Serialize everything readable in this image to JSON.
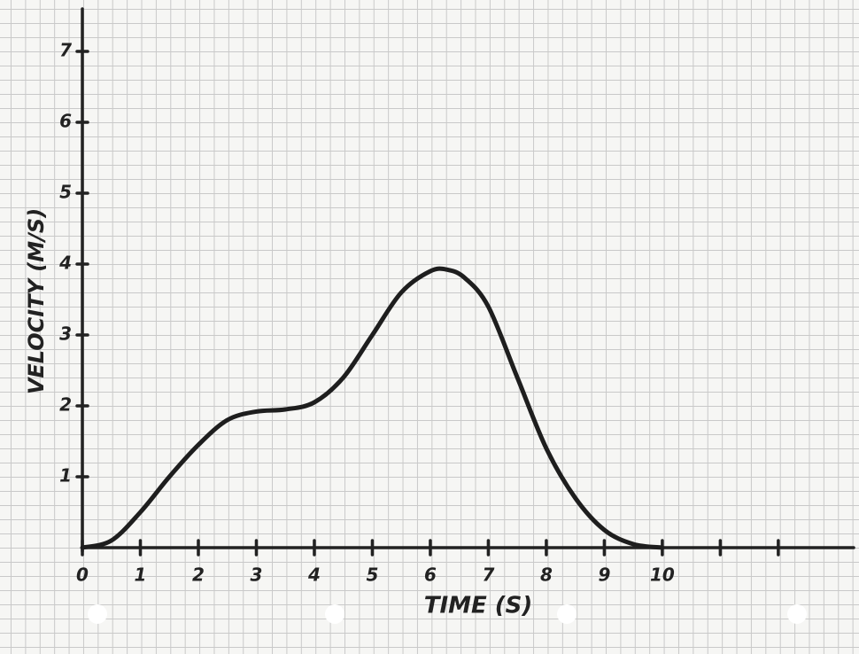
{
  "chart_data": {
    "type": "line",
    "x_label": "TIME (S)",
    "y_label": "VELOCITY (M/S)",
    "x": [
      0,
      0.5,
      1,
      1.5,
      2,
      2.5,
      3,
      3.5,
      4,
      4.5,
      5,
      5.5,
      6,
      6.3,
      6.6,
      7,
      7.5,
      8,
      8.5,
      9,
      9.5,
      10
    ],
    "values": [
      0,
      0.1,
      0.5,
      1.0,
      1.45,
      1.8,
      1.92,
      1.95,
      2.05,
      2.4,
      3.0,
      3.6,
      3.9,
      3.92,
      3.8,
      3.4,
      2.4,
      1.4,
      0.7,
      0.25,
      0.05,
      0
    ],
    "color": "#1e1e1e",
    "xlim": [
      0,
      13.3
    ],
    "ylim": [
      0,
      7.6
    ],
    "xticks": [
      0,
      1,
      2,
      3,
      4,
      5,
      6,
      7,
      8,
      9,
      10,
      {
        "value": 11,
        "label": null
      },
      {
        "value": 12,
        "label": null
      }
    ],
    "yticks": [
      1,
      2,
      3,
      4,
      5,
      6,
      7
    ]
  }
}
